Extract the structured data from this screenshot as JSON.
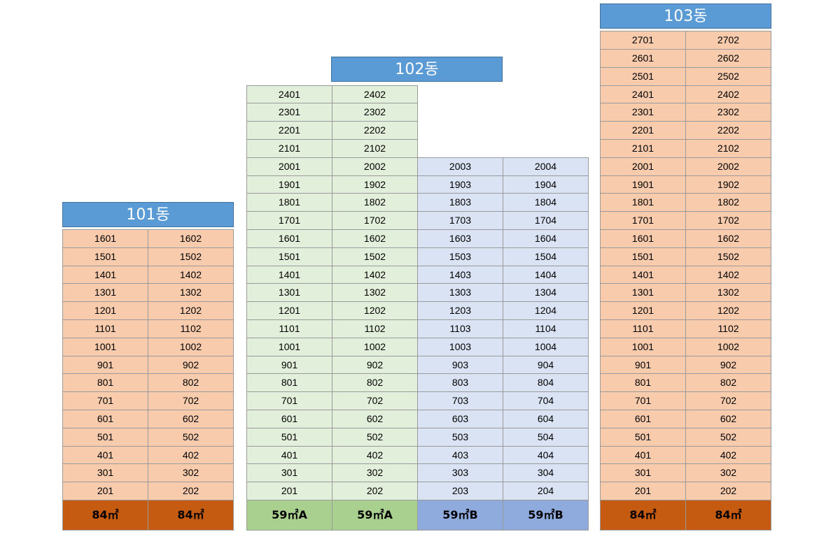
{
  "buildings": [
    {
      "id": "101",
      "title": "101동",
      "columns": [
        {
          "type": "84㎡",
          "units": [
            "1601",
            "1501",
            "1401",
            "1301",
            "1201",
            "1101",
            "1001",
            "901",
            "801",
            "701",
            "601",
            "501",
            "401",
            "301",
            "201"
          ]
        },
        {
          "type": "84㎡",
          "units": [
            "1602",
            "1502",
            "1402",
            "1302",
            "1202",
            "1102",
            "1002",
            "902",
            "802",
            "702",
            "602",
            "502",
            "402",
            "302",
            "202"
          ]
        }
      ]
    },
    {
      "id": "102",
      "title": "102동",
      "columns": [
        {
          "type": "59㎡A",
          "units": [
            "2401",
            "2301",
            "2201",
            "2101",
            "2001",
            "1901",
            "1801",
            "1701",
            "1601",
            "1501",
            "1401",
            "1301",
            "1201",
            "1101",
            "1001",
            "901",
            "801",
            "701",
            "601",
            "501",
            "401",
            "301",
            "201"
          ]
        },
        {
          "type": "59㎡A",
          "units": [
            "2402",
            "2302",
            "2202",
            "2102",
            "2002",
            "1902",
            "1802",
            "1702",
            "1602",
            "1502",
            "1402",
            "1302",
            "1202",
            "1102",
            "1002",
            "902",
            "802",
            "702",
            "602",
            "502",
            "402",
            "302",
            "202"
          ]
        },
        {
          "type": "59㎡B",
          "units": [
            "2003",
            "1903",
            "1803",
            "1703",
            "1603",
            "1503",
            "1403",
            "1303",
            "1203",
            "1103",
            "1003",
            "903",
            "803",
            "703",
            "603",
            "503",
            "403",
            "303",
            "203"
          ]
        },
        {
          "type": "59㎡B",
          "units": [
            "2004",
            "1904",
            "1804",
            "1704",
            "1604",
            "1504",
            "1404",
            "1304",
            "1204",
            "1104",
            "1004",
            "904",
            "804",
            "704",
            "604",
            "504",
            "404",
            "304",
            "204"
          ]
        }
      ]
    },
    {
      "id": "103",
      "title": "103동",
      "columns": [
        {
          "type": "84㎡",
          "units": [
            "2701",
            "2601",
            "2501",
            "2401",
            "2301",
            "2201",
            "2101",
            "2001",
            "1901",
            "1801",
            "1701",
            "1601",
            "1501",
            "1401",
            "1301",
            "1201",
            "1101",
            "1001",
            "901",
            "801",
            "701",
            "601",
            "501",
            "401",
            "301",
            "201"
          ]
        },
        {
          "type": "84㎡",
          "units": [
            "2702",
            "2602",
            "2502",
            "2402",
            "2302",
            "2202",
            "2102",
            "2002",
            "1902",
            "1802",
            "1702",
            "1602",
            "1502",
            "1402",
            "1302",
            "1202",
            "1102",
            "1002",
            "902",
            "802",
            "702",
            "602",
            "502",
            "402",
            "302",
            "202"
          ]
        }
      ]
    }
  ],
  "colors": {
    "title_bg": "#5b9bd5",
    "84": "#f8cbad",
    "59A": "#e2efda",
    "59B": "#dae3f3",
    "84_footer": "#c55a11",
    "59A_footer": "#a9d08e",
    "59B_footer": "#8faadc"
  }
}
